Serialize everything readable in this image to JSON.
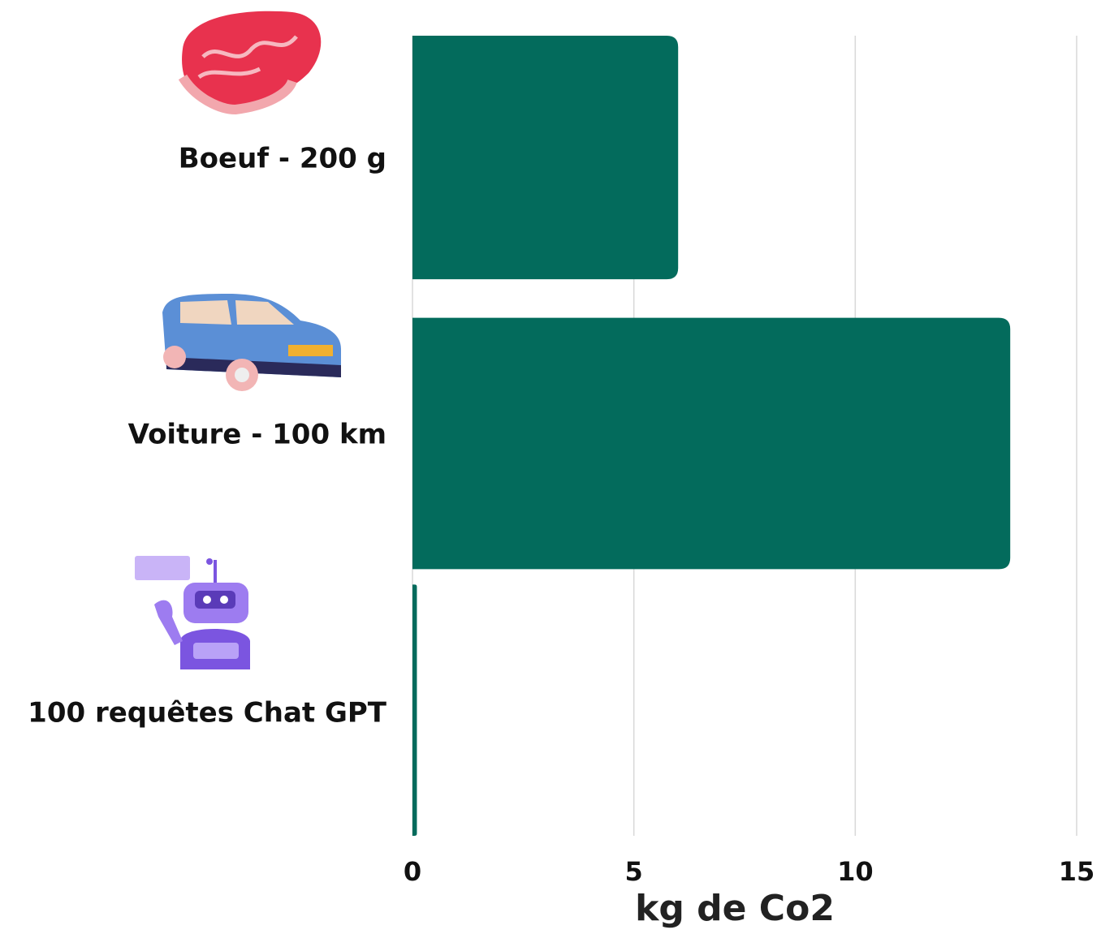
{
  "chart_data": {
    "type": "barh",
    "categories": [
      "Boeuf - 200 g",
      "Voiture - 100 km",
      "100 requêtes Chat GPT"
    ],
    "values": [
      6,
      13.5,
      0.1
    ],
    "color": "#036b5c",
    "xlabel": "kg de Co2",
    "xlim": [
      0,
      15
    ],
    "xticks": [
      0,
      5,
      10,
      15
    ],
    "grid": true
  }
}
